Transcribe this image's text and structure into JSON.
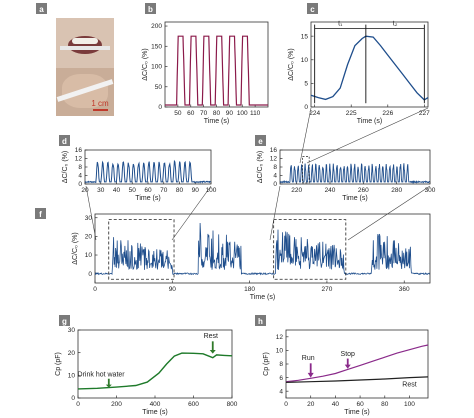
{
  "colors": {
    "blue": "#1f4e8c",
    "maroon": "#8b1a4a",
    "green": "#1e7a2a",
    "purple": "#8a2a8a",
    "black": "#222222",
    "panel_label_bg": "#7a7a7a",
    "arrow": "#2f7a2a"
  },
  "photos": {
    "scale_bar_label": "1 cm"
  },
  "chart_data": [
    {
      "panel": "a",
      "type": "photo",
      "labels": [
        "a"
      ]
    },
    {
      "panel": "b",
      "type": "line",
      "xlabel": "Time (s)",
      "ylabel": "ΔC/C₀ (%)",
      "xlim": [
        40,
        120
      ],
      "ylim": [
        0,
        210
      ],
      "xticks": [
        50,
        60,
        70,
        80,
        90,
        100,
        110
      ],
      "yticks": [
        0,
        50,
        100,
        150,
        200
      ],
      "series": [
        {
          "color": "maroon",
          "pulse_centers": [
            52,
            62,
            72,
            82,
            92,
            102
          ],
          "peak": 175,
          "baseline": 5
        }
      ]
    },
    {
      "panel": "c",
      "type": "line",
      "xlabel": "Time (s)",
      "ylabel": "ΔC/C₀ (%)",
      "xlim": [
        223.9,
        227.1
      ],
      "ylim": [
        0,
        18
      ],
      "xticks": [
        224,
        225,
        226,
        227
      ],
      "yticks": [
        0,
        5,
        10,
        15
      ],
      "annotations": [
        "t₁",
        "t₂"
      ],
      "t1_range": [
        224.0,
        225.4
      ],
      "t2_range": [
        225.4,
        227.0
      ],
      "x": [
        223.9,
        224.1,
        224.3,
        224.5,
        224.7,
        224.9,
        225.1,
        225.3,
        225.4,
        225.6,
        225.8,
        226.0,
        226.2,
        226.4,
        226.6,
        226.8,
        227.0,
        227.1
      ],
      "y": [
        2.5,
        2.0,
        1.6,
        2.2,
        4.0,
        9.0,
        13.0,
        14.5,
        15.0,
        14.8,
        13.0,
        11.0,
        9.0,
        7.0,
        5.0,
        3.0,
        1.5,
        2.0
      ]
    },
    {
      "panel": "d",
      "type": "line",
      "xlabel": "Time (s)",
      "ylabel": "ΔC/C₀ (%)",
      "xlim": [
        20,
        100
      ],
      "ylim": [
        0,
        16
      ],
      "xticks": [
        20,
        30,
        40,
        50,
        60,
        70,
        80,
        90,
        100
      ],
      "yticks": [
        0,
        4,
        8,
        12,
        16
      ],
      "pulse_start": 27,
      "pulse_end": 89,
      "pulse_count": 19,
      "peak": 10,
      "baseline": 1
    },
    {
      "panel": "e",
      "type": "line",
      "xlabel": "Time (s)",
      "ylabel": "ΔC/C₀ (%)",
      "xlim": [
        210,
        300
      ],
      "ylim": [
        0,
        16
      ],
      "xticks": [
        220,
        240,
        260,
        280,
        300
      ],
      "yticks": [
        0,
        4,
        8,
        12,
        16
      ],
      "pulse_start": 216,
      "pulse_end": 288,
      "pulse_count": 34,
      "peak": 9,
      "baseline": 1
    },
    {
      "panel": "f",
      "type": "line",
      "xlabel": "Time (s)",
      "ylabel": "ΔC/C₀ (%)",
      "xlim": [
        0,
        390
      ],
      "ylim": [
        -5,
        32
      ],
      "xticks": [
        0,
        90,
        180,
        270,
        360
      ],
      "yticks": [
        0,
        10,
        20,
        30
      ],
      "bursts": [
        {
          "start": 20,
          "end": 90,
          "peak": 18
        },
        {
          "start": 120,
          "end": 170,
          "peak": 26
        },
        {
          "start": 210,
          "end": 290,
          "peak": 22
        },
        {
          "start": 322,
          "end": 368,
          "peak": 24
        }
      ]
    },
    {
      "panel": "g",
      "type": "line",
      "xlabel": "Time (s)",
      "ylabel": "Cp (pF)",
      "xlim": [
        0,
        800
      ],
      "ylim": [
        0,
        30
      ],
      "xticks": [
        0,
        200,
        400,
        600,
        800
      ],
      "yticks": [
        0,
        10,
        20,
        30
      ],
      "annotations": [
        "Drink hot water",
        "Rest"
      ],
      "x": [
        0,
        100,
        200,
        300,
        360,
        420,
        460,
        500,
        540,
        600,
        650,
        700,
        720,
        760,
        800
      ],
      "y": [
        4,
        4.3,
        4.8,
        5.5,
        7,
        11,
        15,
        18.5,
        19.8,
        19.7,
        19.5,
        17.8,
        19.0,
        18.8,
        18.6
      ]
    },
    {
      "panel": "h",
      "type": "line",
      "xlabel": "Time (s)",
      "ylabel": "Cp (pF)",
      "xlim": [
        0,
        115
      ],
      "ylim": [
        3,
        13
      ],
      "xticks": [
        0,
        20,
        40,
        60,
        80,
        100
      ],
      "yticks": [
        4,
        6,
        8,
        10,
        12
      ],
      "annotations": [
        "Run",
        "Stop",
        "Rest"
      ],
      "series": [
        {
          "color": "purple",
          "x": [
            0,
            10,
            20,
            30,
            40,
            50,
            60,
            70,
            80,
            90,
            100,
            110,
            115
          ],
          "y": [
            5.4,
            5.6,
            5.9,
            6.2,
            6.6,
            7.2,
            7.8,
            8.4,
            9.0,
            9.6,
            10.1,
            10.6,
            10.8
          ]
        },
        {
          "color": "black",
          "x": [
            0,
            20,
            40,
            60,
            80,
            100,
            115
          ],
          "y": [
            5.3,
            5.4,
            5.5,
            5.65,
            5.8,
            6.0,
            6.1
          ]
        }
      ]
    }
  ]
}
